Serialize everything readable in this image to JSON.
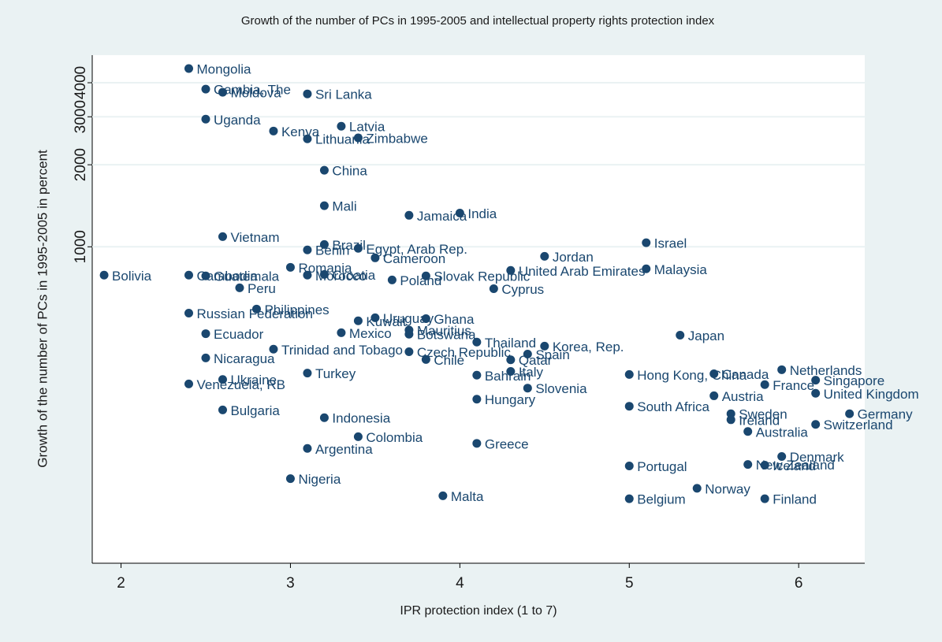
{
  "chart_data": {
    "type": "scatter",
    "title": "Growth of the number of PCs in 1995-2005 and intellectual property rights protection index",
    "xlabel": "IPR protection index (1 to 7)",
    "ylabel": "Growth of the number of PCs in 1995-2005 in percent",
    "log_y": true,
    "grid": true,
    "color": "#1a476f",
    "xlim": [
      1.83,
      6.39
    ],
    "ylim": [
      69,
      5050
    ],
    "xticks": [
      2,
      3,
      4,
      5,
      6
    ],
    "yticks": [
      1000,
      2000,
      3000,
      4000
    ],
    "labels": [
      "Mongolia",
      "Gambia, The",
      "Moldova",
      "Sri Lanka",
      "Uganda",
      "Kenya",
      "Latvia",
      "Lithuania",
      "Zimbabwe",
      "China",
      "Mali",
      "India",
      "Jamaica",
      "Vietnam",
      "Israel",
      "Brazil",
      "Benin",
      "Egypt, Arab Rep.",
      "Cameroon",
      "Jordan",
      "Romania",
      "United Arab Emirates",
      "Malaysia",
      "Bolivia",
      "Cambodia",
      "Guatemala",
      "Morocco",
      "Croatia",
      "Slovak Republic",
      "Poland",
      "Peru",
      "Cyprus",
      "Philippines",
      "Russian Federation",
      "Uruguay",
      "Ghana",
      "Kuwait",
      "Mexico",
      "Botswana",
      "Mauritius",
      "Ecuador",
      "Japan",
      "Thailand",
      "Korea, Rep.",
      "Trinidad and Tobago",
      "Czech Republic",
      "Spain",
      "Nicaragua",
      "Chile",
      "Qatar",
      "Italy",
      "Netherlands",
      "Turkey",
      "Canada",
      "Hong Kong, China",
      "Bahrain",
      "Ukraine",
      "Venezuela, RB",
      "France",
      "Singapore",
      "Slovenia",
      "Austria",
      "United Kingdom",
      "Hungary",
      "South Africa",
      "Bulgaria",
      "Sweden",
      "Germany",
      "Indonesia",
      "Ireland",
      "Switzerland",
      "Australia",
      "Colombia",
      "Greece",
      "Argentina",
      "Denmark",
      "New Zealand",
      "Iceland",
      "Portugal",
      "Nigeria",
      "Norway",
      "Malta",
      "Belgium",
      "Finland"
    ],
    "x": [
      2.4,
      2.5,
      2.6,
      3.1,
      2.5,
      2.9,
      3.3,
      3.1,
      3.4,
      3.2,
      3.2,
      4.0,
      3.7,
      2.6,
      5.1,
      3.2,
      3.1,
      3.4,
      3.5,
      4.5,
      3.0,
      4.3,
      5.1,
      1.9,
      2.4,
      2.5,
      3.1,
      3.2,
      3.8,
      3.6,
      2.7,
      4.2,
      2.8,
      2.4,
      3.5,
      3.8,
      3.4,
      3.3,
      3.7,
      3.7,
      2.5,
      5.3,
      4.1,
      4.5,
      2.9,
      3.7,
      4.4,
      2.5,
      3.8,
      4.3,
      4.3,
      5.9,
      3.1,
      5.5,
      5.0,
      4.1,
      2.6,
      2.4,
      5.8,
      6.1,
      4.4,
      5.5,
      6.1,
      4.1,
      5.0,
      2.6,
      5.6,
      6.3,
      3.2,
      5.6,
      6.1,
      5.7,
      3.4,
      4.1,
      3.1,
      5.9,
      5.7,
      5.8,
      5.0,
      3.0,
      5.4,
      3.9,
      5.0,
      5.8
    ],
    "values": [
      4510,
      3790,
      3690,
      3640,
      2940,
      2660,
      2770,
      2490,
      2510,
      1910,
      1415,
      1330,
      1305,
      1090,
      1035,
      1020,
      974,
      987,
      911,
      923,
      841,
      819,
      830,
      787,
      787,
      782,
      787,
      792,
      782,
      756,
      707,
      702,
      591,
      571,
      549,
      545,
      535,
      484,
      478,
      495,
      480,
      474,
      447,
      432,
      421,
      412,
      404,
      391,
      386,
      385,
      349,
      354,
      344,
      342,
      340,
      338,
      326,
      314,
      312,
      324,
      303,
      284,
      290,
      276,
      260,
      252,
      244,
      244,
      236,
      232,
      223,
      210,
      201,
      190,
      182,
      170,
      159,
      158,
      157,
      141,
      130,
      122,
      119,
      119
    ]
  }
}
